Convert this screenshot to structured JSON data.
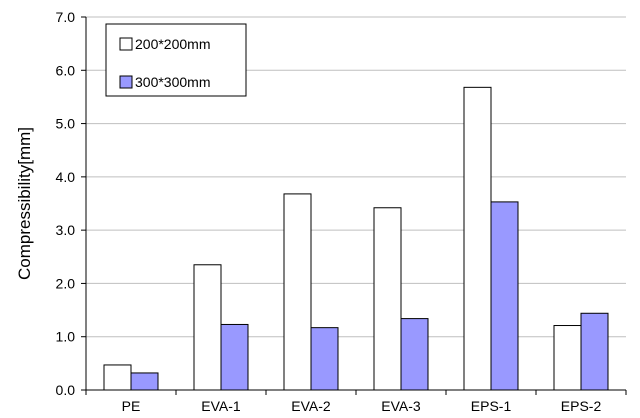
{
  "chart_data": {
    "type": "bar",
    "title": "",
    "xlabel": "",
    "ylabel": "Compressibility[mm]",
    "ylim": [
      0,
      7.0
    ],
    "yticks": [
      "0.0",
      "1.0",
      "2.0",
      "3.0",
      "4.0",
      "5.0",
      "6.0",
      "7.0"
    ],
    "grid": true,
    "legend_position": "top-left",
    "categories": [
      "PE",
      "EVA-1",
      "EVA-2",
      "EVA-3",
      "EPS-1",
      "EPS-2"
    ],
    "series": [
      {
        "name": "200*200mm",
        "color": "#ffffff",
        "values": [
          0.47,
          2.35,
          3.68,
          3.42,
          5.68,
          1.21
        ]
      },
      {
        "name": "300*300mm",
        "color": "#9999ff",
        "values": [
          0.32,
          1.23,
          1.17,
          1.34,
          3.53,
          1.44
        ]
      }
    ]
  }
}
